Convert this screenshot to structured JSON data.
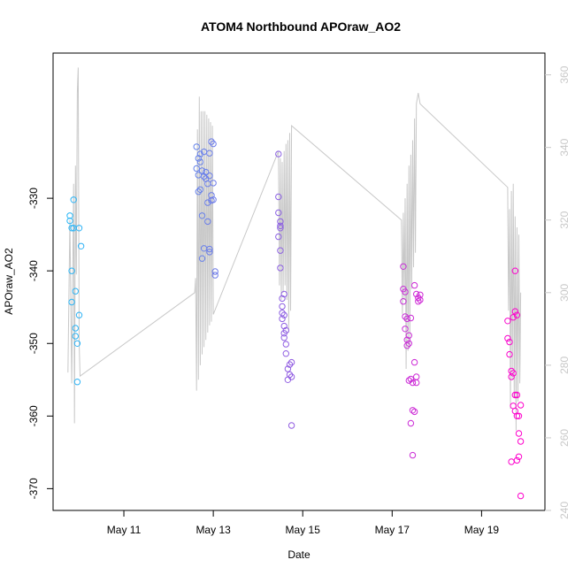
{
  "chart_data": {
    "type": "scatter",
    "title": "ATOM4 Northbound APOraw_AO2",
    "xlabel": "Date",
    "ylabel": "APOraw_AO2",
    "x_tick_labels": [
      "May 11",
      "May 13",
      "May 15",
      "May 17",
      "May 19"
    ],
    "x_tick_dates": [
      "2021-05-11",
      "2021-05-13",
      "2021-05-15",
      "2021-05-17",
      "2021-05-19"
    ],
    "xlim": [
      "2021-05-09 10:00",
      "2021-05-20 10:00"
    ],
    "ylim": [
      -373,
      -310
    ],
    "y_ticks": [
      -370,
      -360,
      -350,
      -340,
      -330
    ],
    "y_tick_labels": [
      "-370",
      "-360",
      "-350",
      "-340",
      "-330"
    ],
    "y2lim": [
      240,
      366
    ],
    "y2_ticks": [
      240,
      260,
      280,
      300,
      320,
      340,
      360
    ],
    "y2_tick_labels": [
      "240",
      "260",
      "280",
      "300",
      "320",
      "340",
      "360"
    ],
    "grid": false,
    "point_color_range": [
      "#29b6f6",
      "#ff00cc"
    ],
    "line_color": "#c8c8c8",
    "points": [
      {
        "x": "2021-05-09 19:00",
        "y": -332.4
      },
      {
        "x": "2021-05-09 19:00",
        "y": -333.1
      },
      {
        "x": "2021-05-09 20:00",
        "y": -334.1
      },
      {
        "x": "2021-05-09 20:00",
        "y": -340.0
      },
      {
        "x": "2021-05-09 20:00",
        "y": -344.3
      },
      {
        "x": "2021-05-09 21:00",
        "y": -334.1
      },
      {
        "x": "2021-05-09 21:00",
        "y": -330.2
      },
      {
        "x": "2021-05-09 22:00",
        "y": -342.8
      },
      {
        "x": "2021-05-09 22:00",
        "y": -347.9
      },
      {
        "x": "2021-05-09 22:00",
        "y": -349.0
      },
      {
        "x": "2021-05-09 23:00",
        "y": -350.0
      },
      {
        "x": "2021-05-09 23:00",
        "y": -355.3
      },
      {
        "x": "2021-05-10 00:00",
        "y": -334.1
      },
      {
        "x": "2021-05-10 00:00",
        "y": -346.1
      },
      {
        "x": "2021-05-10 01:00",
        "y": -336.6
      },
      {
        "x": "2021-05-12 15:00",
        "y": -322.9
      },
      {
        "x": "2021-05-12 15:00",
        "y": -325.9
      },
      {
        "x": "2021-05-12 16:00",
        "y": -324.5
      },
      {
        "x": "2021-05-12 16:00",
        "y": -326.8
      },
      {
        "x": "2021-05-12 16:00",
        "y": -329.1
      },
      {
        "x": "2021-05-12 17:00",
        "y": -323.9
      },
      {
        "x": "2021-05-12 17:00",
        "y": -325.0
      },
      {
        "x": "2021-05-12 17:00",
        "y": -328.8
      },
      {
        "x": "2021-05-12 18:00",
        "y": -332.4
      },
      {
        "x": "2021-05-12 18:00",
        "y": -338.3
      },
      {
        "x": "2021-05-12 18:00",
        "y": -326.2
      },
      {
        "x": "2021-05-12 19:00",
        "y": -323.6
      },
      {
        "x": "2021-05-12 19:00",
        "y": -327.0
      },
      {
        "x": "2021-05-12 19:00",
        "y": -336.9
      },
      {
        "x": "2021-05-12 20:00",
        "y": -327.3
      },
      {
        "x": "2021-05-12 20:00",
        "y": -326.4
      },
      {
        "x": "2021-05-12 21:00",
        "y": -328.0
      },
      {
        "x": "2021-05-12 21:00",
        "y": -333.2
      },
      {
        "x": "2021-05-12 21:00",
        "y": -330.6
      },
      {
        "x": "2021-05-12 22:00",
        "y": -323.8
      },
      {
        "x": "2021-05-12 22:00",
        "y": -326.9
      },
      {
        "x": "2021-05-12 22:00",
        "y": -337.0
      },
      {
        "x": "2021-05-12 23:00",
        "y": -322.2
      },
      {
        "x": "2021-05-12 23:00",
        "y": -329.6
      },
      {
        "x": "2021-05-12 23:00",
        "y": -330.3
      },
      {
        "x": "2021-05-13 00:00",
        "y": -322.5
      },
      {
        "x": "2021-05-13 00:00",
        "y": -327.9
      },
      {
        "x": "2021-05-13 00:00",
        "y": -330.2
      },
      {
        "x": "2021-05-13 01:00",
        "y": -340.1
      },
      {
        "x": "2021-05-13 01:00",
        "y": -340.6
      },
      {
        "x": "2021-05-12 22:00",
        "y": -337.4
      },
      {
        "x": "2021-05-14 11:00",
        "y": -323.9
      },
      {
        "x": "2021-05-14 11:00",
        "y": -329.8
      },
      {
        "x": "2021-05-14 11:00",
        "y": -332.0
      },
      {
        "x": "2021-05-14 11:00",
        "y": -335.3
      },
      {
        "x": "2021-05-14 12:00",
        "y": -333.2
      },
      {
        "x": "2021-05-14 12:00",
        "y": -333.8
      },
      {
        "x": "2021-05-14 12:00",
        "y": -334.1
      },
      {
        "x": "2021-05-14 12:00",
        "y": -337.2
      },
      {
        "x": "2021-05-14 12:00",
        "y": -339.6
      },
      {
        "x": "2021-05-14 13:00",
        "y": -343.8
      },
      {
        "x": "2021-05-14 13:00",
        "y": -344.9
      },
      {
        "x": "2021-05-14 13:00",
        "y": -345.8
      },
      {
        "x": "2021-05-14 13:00",
        "y": -346.6
      },
      {
        "x": "2021-05-14 14:00",
        "y": -343.2
      },
      {
        "x": "2021-05-14 14:00",
        "y": -346.1
      },
      {
        "x": "2021-05-14 14:00",
        "y": -347.6
      },
      {
        "x": "2021-05-14 14:00",
        "y": -348.6
      },
      {
        "x": "2021-05-14 14:00",
        "y": -349.2
      },
      {
        "x": "2021-05-14 15:00",
        "y": -348.2
      },
      {
        "x": "2021-05-14 15:00",
        "y": -350.1
      },
      {
        "x": "2021-05-14 15:00",
        "y": -351.4
      },
      {
        "x": "2021-05-14 16:00",
        "y": -353.5
      },
      {
        "x": "2021-05-14 16:00",
        "y": -355.0
      },
      {
        "x": "2021-05-14 17:00",
        "y": -352.9
      },
      {
        "x": "2021-05-14 17:00",
        "y": -354.3
      },
      {
        "x": "2021-05-14 18:00",
        "y": -352.6
      },
      {
        "x": "2021-05-14 18:00",
        "y": -354.6
      },
      {
        "x": "2021-05-14 18:00",
        "y": -361.3
      },
      {
        "x": "2021-05-17 06:00",
        "y": -339.4
      },
      {
        "x": "2021-05-17 06:00",
        "y": -342.5
      },
      {
        "x": "2021-05-17 06:00",
        "y": -344.2
      },
      {
        "x": "2021-05-17 07:00",
        "y": -342.9
      },
      {
        "x": "2021-05-17 07:00",
        "y": -346.3
      },
      {
        "x": "2021-05-17 07:00",
        "y": -348.0
      },
      {
        "x": "2021-05-17 08:00",
        "y": -346.6
      },
      {
        "x": "2021-05-17 08:00",
        "y": -349.5
      },
      {
        "x": "2021-05-17 08:00",
        "y": -350.3
      },
      {
        "x": "2021-05-17 09:00",
        "y": -348.9
      },
      {
        "x": "2021-05-17 09:00",
        "y": -350.0
      },
      {
        "x": "2021-05-17 09:00",
        "y": -355.1
      },
      {
        "x": "2021-05-17 10:00",
        "y": -346.5
      },
      {
        "x": "2021-05-17 10:00",
        "y": -354.9
      },
      {
        "x": "2021-05-17 10:00",
        "y": -361.0
      },
      {
        "x": "2021-05-17 11:00",
        "y": -355.4
      },
      {
        "x": "2021-05-17 11:00",
        "y": -359.2
      },
      {
        "x": "2021-05-17 11:00",
        "y": -365.4
      },
      {
        "x": "2021-05-17 12:00",
        "y": -342.0
      },
      {
        "x": "2021-05-17 12:00",
        "y": -352.6
      },
      {
        "x": "2021-05-17 12:00",
        "y": -359.4
      },
      {
        "x": "2021-05-17 13:00",
        "y": -343.2
      },
      {
        "x": "2021-05-17 13:00",
        "y": -354.6
      },
      {
        "x": "2021-05-17 13:00",
        "y": -355.4
      },
      {
        "x": "2021-05-17 14:00",
        "y": -343.7
      },
      {
        "x": "2021-05-17 14:00",
        "y": -344.2
      },
      {
        "x": "2021-05-17 15:00",
        "y": -343.3
      },
      {
        "x": "2021-05-17 15:00",
        "y": -344.0
      },
      {
        "x": "2021-05-19 14:00",
        "y": -346.9
      },
      {
        "x": "2021-05-19 14:00",
        "y": -349.3
      },
      {
        "x": "2021-05-19 15:00",
        "y": -349.8
      },
      {
        "x": "2021-05-19 15:00",
        "y": -351.5
      },
      {
        "x": "2021-05-19 16:00",
        "y": -353.8
      },
      {
        "x": "2021-05-19 16:00",
        "y": -354.6
      },
      {
        "x": "2021-05-19 16:00",
        "y": -366.3
      },
      {
        "x": "2021-05-19 17:00",
        "y": -346.4
      },
      {
        "x": "2021-05-19 17:00",
        "y": -354.1
      },
      {
        "x": "2021-05-19 17:00",
        "y": -358.6
      },
      {
        "x": "2021-05-19 18:00",
        "y": -340.0
      },
      {
        "x": "2021-05-19 18:00",
        "y": -345.6
      },
      {
        "x": "2021-05-19 18:00",
        "y": -357.1
      },
      {
        "x": "2021-05-19 18:00",
        "y": -359.3
      },
      {
        "x": "2021-05-19 19:00",
        "y": -346.1
      },
      {
        "x": "2021-05-19 19:00",
        "y": -360.0
      },
      {
        "x": "2021-05-19 19:00",
        "y": -366.1
      },
      {
        "x": "2021-05-19 19:00",
        "y": -357.1
      },
      {
        "x": "2021-05-19 20:00",
        "y": -360.0
      },
      {
        "x": "2021-05-19 20:00",
        "y": -362.4
      },
      {
        "x": "2021-05-19 20:00",
        "y": -365.6
      },
      {
        "x": "2021-05-19 21:00",
        "y": -358.5
      },
      {
        "x": "2021-05-19 21:00",
        "y": -363.5
      },
      {
        "x": "2021-05-19 21:00",
        "y": -371.0
      }
    ],
    "line_series_right_axis": [
      {
        "x": "2021-05-09 18:00",
        "y": 278
      },
      {
        "x": "2021-05-09 19:00",
        "y": 320
      },
      {
        "x": "2021-05-09 20:00",
        "y": 275
      },
      {
        "x": "2021-05-09 21:00",
        "y": 330
      },
      {
        "x": "2021-05-09 21:30",
        "y": 264
      },
      {
        "x": "2021-05-09 22:00",
        "y": 335
      },
      {
        "x": "2021-05-09 22:30",
        "y": 305
      },
      {
        "x": "2021-05-09 23:00",
        "y": 355
      },
      {
        "x": "2021-05-09 23:30",
        "y": 362
      },
      {
        "x": "2021-05-10 00:00",
        "y": 286
      },
      {
        "x": "2021-05-10 00:30",
        "y": 277
      },
      {
        "x": "2021-05-12 14:00",
        "y": 300
      },
      {
        "x": "2021-05-12 14:30",
        "y": 304
      },
      {
        "x": "2021-05-12 15:00",
        "y": 273
      },
      {
        "x": "2021-05-12 15:30",
        "y": 345
      },
      {
        "x": "2021-05-12 16:00",
        "y": 276
      },
      {
        "x": "2021-05-12 16:30",
        "y": 354
      },
      {
        "x": "2021-05-12 17:00",
        "y": 280
      },
      {
        "x": "2021-05-12 17:30",
        "y": 350
      },
      {
        "x": "2021-05-12 18:00",
        "y": 283
      },
      {
        "x": "2021-05-12 18:30",
        "y": 350
      },
      {
        "x": "2021-05-12 19:00",
        "y": 285
      },
      {
        "x": "2021-05-12 19:30",
        "y": 350
      },
      {
        "x": "2021-05-12 20:00",
        "y": 287
      },
      {
        "x": "2021-05-12 20:30",
        "y": 349
      },
      {
        "x": "2021-05-12 21:00",
        "y": 289
      },
      {
        "x": "2021-05-12 21:30",
        "y": 348
      },
      {
        "x": "2021-05-12 22:00",
        "y": 291
      },
      {
        "x": "2021-05-12 22:30",
        "y": 347
      },
      {
        "x": "2021-05-12 23:00",
        "y": 292
      },
      {
        "x": "2021-05-12 23:30",
        "y": 346
      },
      {
        "x": "2021-05-13 00:00",
        "y": 294
      },
      {
        "x": "2021-05-14 11:00",
        "y": 339
      },
      {
        "x": "2021-05-14 11:30",
        "y": 302
      },
      {
        "x": "2021-05-14 12:00",
        "y": 337
      },
      {
        "x": "2021-05-14 12:30",
        "y": 298
      },
      {
        "x": "2021-05-14 13:00",
        "y": 336
      },
      {
        "x": "2021-05-14 13:30",
        "y": 300
      },
      {
        "x": "2021-05-14 14:00",
        "y": 339
      },
      {
        "x": "2021-05-14 14:30",
        "y": 302
      },
      {
        "x": "2021-05-14 15:00",
        "y": 341
      },
      {
        "x": "2021-05-14 15:30",
        "y": 298
      },
      {
        "x": "2021-05-14 16:00",
        "y": 342
      },
      {
        "x": "2021-05-14 16:30",
        "y": 289
      },
      {
        "x": "2021-05-14 17:00",
        "y": 344
      },
      {
        "x": "2021-05-14 17:30",
        "y": 295
      },
      {
        "x": "2021-05-14 18:00",
        "y": 346
      },
      {
        "x": "2021-05-17 05:00",
        "y": 320
      },
      {
        "x": "2021-05-17 05:30",
        "y": 294
      },
      {
        "x": "2021-05-17 06:00",
        "y": 322
      },
      {
        "x": "2021-05-17 06:30",
        "y": 298
      },
      {
        "x": "2021-05-17 07:00",
        "y": 326
      },
      {
        "x": "2021-05-17 07:30",
        "y": 279
      },
      {
        "x": "2021-05-17 08:00",
        "y": 330
      },
      {
        "x": "2021-05-17 08:30",
        "y": 284
      },
      {
        "x": "2021-05-17 09:00",
        "y": 335
      },
      {
        "x": "2021-05-17 09:30",
        "y": 285
      },
      {
        "x": "2021-05-17 10:00",
        "y": 338
      },
      {
        "x": "2021-05-17 10:30",
        "y": 301
      },
      {
        "x": "2021-05-17 11:00",
        "y": 342
      },
      {
        "x": "2021-05-17 11:30",
        "y": 307
      },
      {
        "x": "2021-05-17 12:00",
        "y": 348
      },
      {
        "x": "2021-05-17 12:30",
        "y": 311
      },
      {
        "x": "2021-05-17 13:00",
        "y": 352
      },
      {
        "x": "2021-05-17 14:00",
        "y": 355
      },
      {
        "x": "2021-05-17 15:00",
        "y": 352
      },
      {
        "x": "2021-05-19 14:00",
        "y": 329
      },
      {
        "x": "2021-05-19 14:30",
        "y": 295
      },
      {
        "x": "2021-05-19 15:00",
        "y": 323
      },
      {
        "x": "2021-05-19 15:30",
        "y": 268
      },
      {
        "x": "2021-05-19 16:00",
        "y": 328
      },
      {
        "x": "2021-05-19 16:30",
        "y": 276
      },
      {
        "x": "2021-05-19 17:00",
        "y": 330
      },
      {
        "x": "2021-05-19 17:30",
        "y": 271
      },
      {
        "x": "2021-05-19 18:00",
        "y": 321
      },
      {
        "x": "2021-05-19 18:30",
        "y": 262
      },
      {
        "x": "2021-05-19 19:00",
        "y": 318
      },
      {
        "x": "2021-05-19 19:30",
        "y": 270
      },
      {
        "x": "2021-05-19 20:00",
        "y": 316
      },
      {
        "x": "2021-05-19 20:30",
        "y": 275
      },
      {
        "x": "2021-05-19 21:00",
        "y": 300
      }
    ]
  }
}
